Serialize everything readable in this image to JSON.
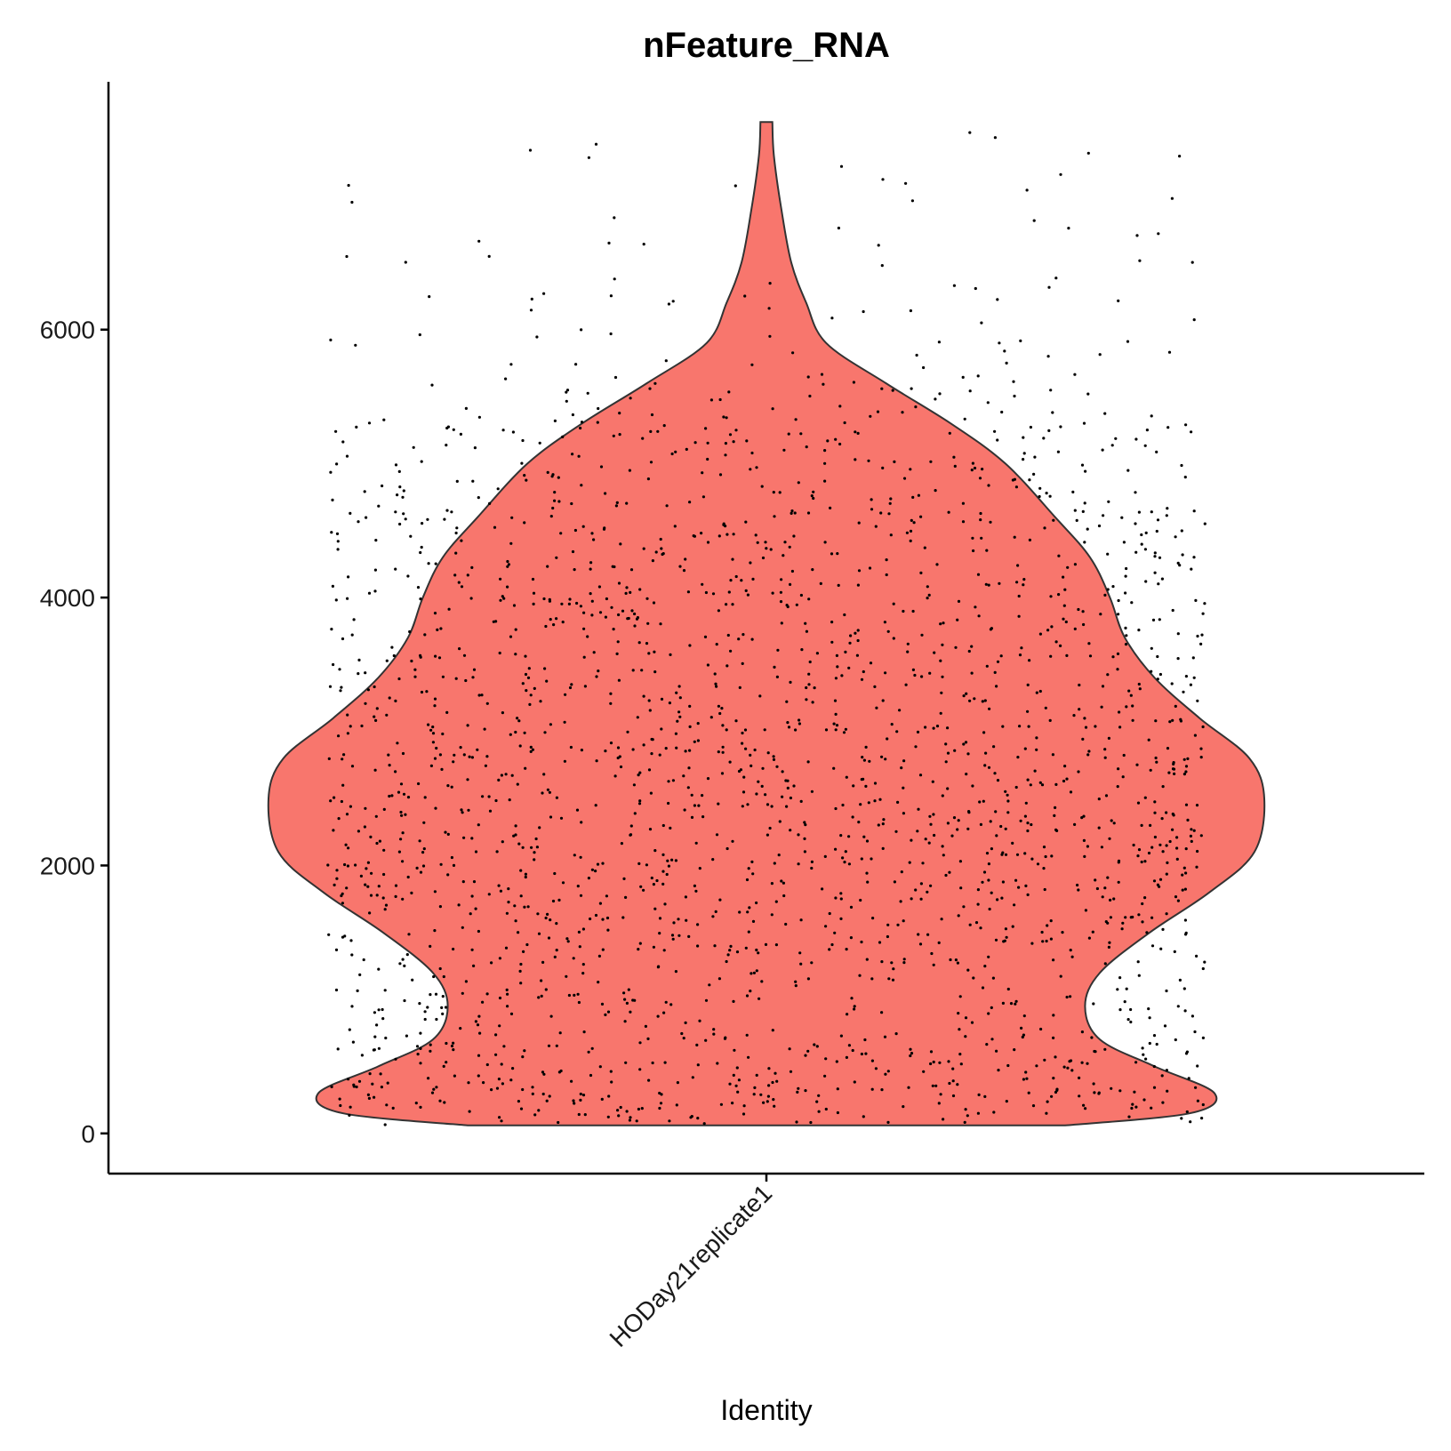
{
  "colors": {
    "violin_fill": "#F8766D",
    "violin_outline": "#333333",
    "points": "#000000",
    "axis": "#000000"
  },
  "chart_data": {
    "type": "violin",
    "title": "nFeature_RNA",
    "xlabel": "Identity",
    "ylabel": "",
    "categories": [
      "HODay21replicate1"
    ],
    "ylim": [
      -300,
      7850
    ],
    "y_ticks": [
      0,
      2000,
      4000,
      6000
    ],
    "y_tick_labels": [
      "0",
      "2000",
      "4000",
      "6000"
    ],
    "grid": false,
    "legend": "none",
    "violin": {
      "category": "HODay21replicate1",
      "y_min": 60,
      "y_max": 7550,
      "density_profile": [
        [
          60,
          0.6
        ],
        [
          150,
          0.85
        ],
        [
          300,
          0.9
        ],
        [
          500,
          0.78
        ],
        [
          700,
          0.67
        ],
        [
          950,
          0.64
        ],
        [
          1200,
          0.67
        ],
        [
          1500,
          0.77
        ],
        [
          1800,
          0.89
        ],
        [
          2100,
          0.98
        ],
        [
          2500,
          1.0
        ],
        [
          2800,
          0.97
        ],
        [
          3100,
          0.87
        ],
        [
          3400,
          0.78
        ],
        [
          3700,
          0.72
        ],
        [
          4000,
          0.69
        ],
        [
          4300,
          0.65
        ],
        [
          4600,
          0.58
        ],
        [
          5000,
          0.48
        ],
        [
          5300,
          0.37
        ],
        [
          5600,
          0.24
        ],
        [
          5900,
          0.12
        ],
        [
          6200,
          0.08
        ],
        [
          6500,
          0.05
        ],
        [
          6900,
          0.03
        ],
        [
          7300,
          0.015
        ],
        [
          7550,
          0.012
        ]
      ]
    },
    "points": {
      "n": 2200,
      "jitter_width": 0.4,
      "y_range": [
        60,
        7550
      ]
    }
  }
}
